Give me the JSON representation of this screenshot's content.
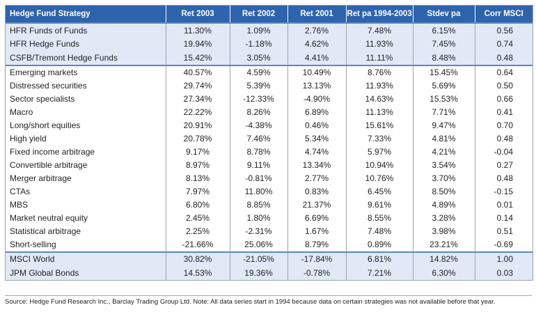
{
  "table": {
    "header": [
      "Hedge Fund Strategy",
      "Ret 2003",
      "Ret 2002",
      "Ret 2001",
      "Ret pa 1994-2003",
      "Stdev pa",
      "Corr MSCI"
    ],
    "groups": [
      [
        [
          "HFR Funds of Funds",
          "11.30%",
          "1.09%",
          "2.76%",
          "7.48%",
          "6.15%",
          "0.56"
        ],
        [
          "HFR Hedge Funds",
          "19.94%",
          "-1.18%",
          "4.62%",
          "11.93%",
          "7.45%",
          "0.74"
        ],
        [
          "CSFB/Tremont Hedge Funds",
          "15.42%",
          "3.05%",
          "4.41%",
          "11.11%",
          "8.48%",
          "0.48"
        ]
      ],
      [
        [
          "Emerging markets",
          "40.57%",
          "4.59%",
          "10.49%",
          "8.76%",
          "15.45%",
          "0.64"
        ],
        [
          "Distressed securities",
          "29.74%",
          "5.39%",
          "13.13%",
          "11.93%",
          "5.69%",
          "0.50"
        ],
        [
          "Sector specialists",
          "27.34%",
          "-12.33%",
          "-4.90%",
          "14.63%",
          "15.53%",
          "0.66"
        ],
        [
          "Macro",
          "22.22%",
          "8.26%",
          "6.89%",
          "11.13%",
          "7.71%",
          "0.41"
        ],
        [
          "Long/short equities",
          "20.91%",
          "-4.38%",
          "0.46%",
          "15.61%",
          "9.47%",
          "0.70"
        ],
        [
          "High yield",
          "20.78%",
          "7.46%",
          "5.34%",
          "7.33%",
          "4.81%",
          "0.48"
        ],
        [
          "Fixed income arbitrage",
          "9.17%",
          "8.78%",
          "4.74%",
          "5.97%",
          "4.21%",
          "-0.04"
        ],
        [
          "Convertible arbitrage",
          "8.97%",
          "9.11%",
          "13.34%",
          "10.94%",
          "3.54%",
          "0.27"
        ],
        [
          "Merger arbitrage",
          "8.13%",
          "-0.81%",
          "2.77%",
          "10.76%",
          "3.70%",
          "0.48"
        ],
        [
          "CTAs",
          "7.97%",
          "11.80%",
          "0.83%",
          "6.45%",
          "8.50%",
          "-0.15"
        ],
        [
          "MBS",
          "6.80%",
          "8.85%",
          "21.37%",
          "9.61%",
          "4.89%",
          "0.01"
        ],
        [
          "Market neutral equity",
          "2.45%",
          "1.80%",
          "6.69%",
          "8.55%",
          "3.28%",
          "0.14"
        ],
        [
          "Statistical arbitrage",
          "2.25%",
          "-2.31%",
          "1.67%",
          "7.48%",
          "3.98%",
          "0.51"
        ],
        [
          "Short-selling",
          "-21.66%",
          "25.06%",
          "8.79%",
          "0.89%",
          "23.21%",
          "-0.69"
        ]
      ],
      [
        [
          "MSCI World",
          "30.82%",
          "-21.05%",
          "-17.84%",
          "6.81%",
          "14.82%",
          "1.00"
        ],
        [
          "JPM Global Bonds",
          "14.53%",
          "19.36%",
          "-0.78%",
          "7.21%",
          "6.30%",
          "0.03"
        ]
      ]
    ]
  },
  "source": "Source: Hedge Fund Research Inc., Barclay Trading Group Ltd.   Note: All data series start in 1994 because data on certain strategies was not available before that year."
}
